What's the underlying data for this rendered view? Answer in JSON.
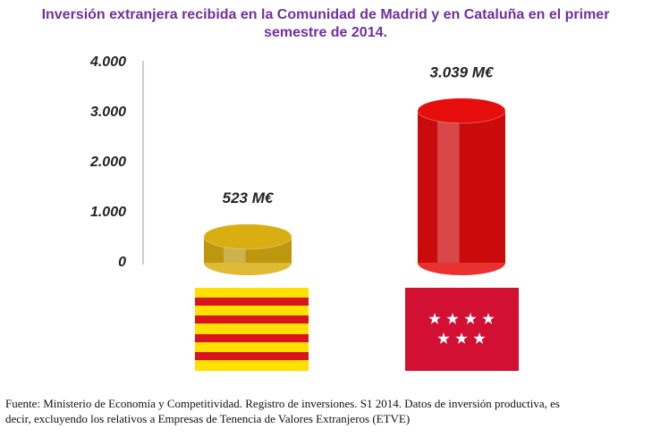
{
  "chart_data": {
    "type": "bar",
    "title": "Inversión extranjera recibida en la Comunidad de Madrid y en Cataluña en el primer semestre de 2014.",
    "categories": [
      null,
      null
    ],
    "series": [
      {
        "colors": [
          "#d8ae12",
          "#e60d0d"
        ],
        "values": [
          523,
          3039
        ],
        "value_labels": [
          "523 M€",
          "3.039 M€"
        ]
      }
    ],
    "ylim": [
      0,
      4000
    ],
    "yticks": [
      0,
      {
        "value": 1000,
        "label": "1.000"
      },
      {
        "value": 2000,
        "label": "2.000"
      },
      {
        "value": 3000,
        "label": "3.000"
      },
      {
        "value": 4000,
        "label": "4.000"
      }
    ],
    "note": "Fuente: Ministerio de Economía y Competitividad. Registro de inversiones. S1 2014. Datos de inversión productiva, es decir, excluyendo los relativos a Empresas de Tenencia de Valores Extranjeros (ETVE)"
  }
}
